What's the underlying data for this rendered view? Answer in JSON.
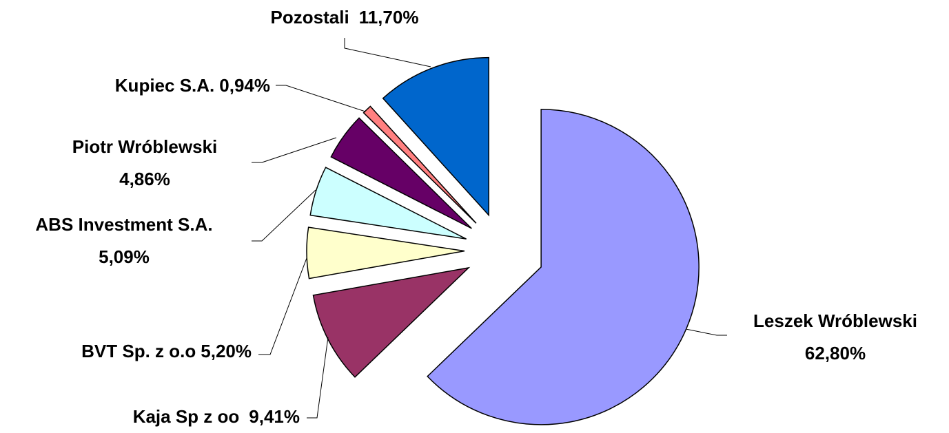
{
  "chart_data": {
    "type": "pie",
    "categories": [
      "Leszek Wróblewski",
      "Kaja Sp z oo",
      "BVT Sp. z o.o",
      "ABS Investment S.A.",
      "Piotr Wróblewski",
      "Kupiec S.A.",
      "Pozostali"
    ],
    "values": [
      62.8,
      9.41,
      5.2,
      5.09,
      4.86,
      0.94,
      11.7
    ],
    "value_labels": [
      "62,80%",
      "9,41%",
      "5,20%",
      "5,09%",
      "4,86%",
      "0,94%",
      "11,70%"
    ],
    "colors": [
      "#9999ff",
      "#993366",
      "#ffffcc",
      "#ccffff",
      "#660066",
      "#ff8080",
      "#0066cc"
    ]
  }
}
